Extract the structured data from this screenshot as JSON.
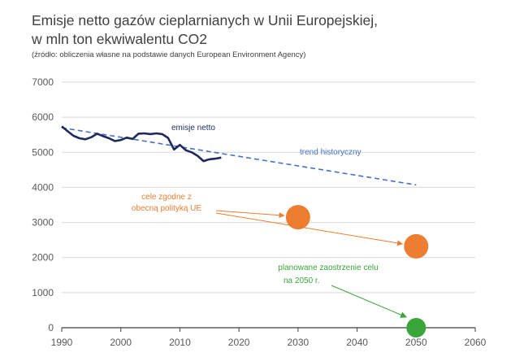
{
  "chart_data": {
    "type": "line",
    "title_line1": "Emisje netto gazów cieplarnianych  w Unii Europejskiej,",
    "title_line2": "w mln ton ekwiwalentu  CO2",
    "subtitle": "(źródło: obliczenia własne na podstawie danych European Environment Agency)",
    "xlim": [
      1990,
      2060
    ],
    "ylim": [
      0,
      7000
    ],
    "x_ticks": [
      1990,
      2000,
      2010,
      2020,
      2030,
      2040,
      2050,
      2060
    ],
    "y_ticks": [
      0,
      1000,
      2000,
      3000,
      4000,
      5000,
      6000,
      7000
    ],
    "grid": "horizontal",
    "colors": {
      "emissions": "#1f2a5c",
      "trend": "#4472c4",
      "targets": "#ed7d31",
      "plan": "#3aa63a",
      "grid": "#d9d9d9",
      "axis": "#404040"
    },
    "series": [
      {
        "name": "emisje netto",
        "x": [
          1990,
          1991,
          1992,
          1993,
          1994,
          1995,
          1996,
          1997,
          1998,
          1999,
          2000,
          2001,
          2002,
          2003,
          2004,
          2005,
          2006,
          2007,
          2008,
          2009,
          2010,
          2011,
          2012,
          2013,
          2014,
          2015,
          2016,
          2017
        ],
        "y": [
          5740,
          5600,
          5470,
          5400,
          5370,
          5430,
          5530,
          5460,
          5400,
          5320,
          5350,
          5420,
          5380,
          5530,
          5540,
          5520,
          5540,
          5520,
          5410,
          5080,
          5210,
          5060,
          5000,
          4900,
          4750,
          4800,
          4820,
          4850
        ]
      },
      {
        "name": "trend historyczny",
        "x": [
          1990,
          2050
        ],
        "y": [
          5700,
          4070
        ]
      }
    ],
    "points": [
      {
        "name": "cel 2030",
        "x": 2030,
        "y": 3150
      },
      {
        "name": "cel 2050",
        "x": 2050,
        "y": 2320
      },
      {
        "name": "cel 2050 zaostrzony",
        "x": 2050,
        "y": 0
      }
    ],
    "annotations": {
      "emissions_label": "emisje netto",
      "trend_label": "trend historyczny",
      "targets_line1": "cele zgodne z",
      "targets_line2": "obecną polityką UE",
      "plan_line1": "planowane zaostrzenie celu",
      "plan_line2": "na 2050 r."
    }
  }
}
